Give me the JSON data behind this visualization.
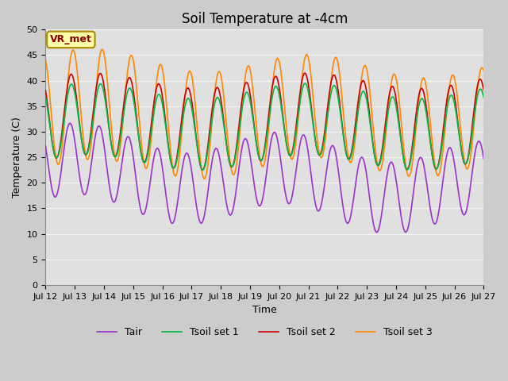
{
  "title": "Soil Temperature at -4cm",
  "xlabel": "Time",
  "ylabel": "Temperature (C)",
  "ylim": [
    0,
    50
  ],
  "annotation": "VR_met",
  "fig_bg_color": "#cccccc",
  "plot_bg_color": "#e0e0e0",
  "grid_color": "#f5f5f5",
  "tick_labels": [
    "Jul 12",
    "Jul 13",
    "Jul 14",
    "Jul 15",
    "Jul 16",
    "Jul 17",
    "Jul 18",
    "Jul 19",
    "Jul 20",
    "Jul 21",
    "Jul 22",
    "Jul 23",
    "Jul 24",
    "Jul 25",
    "Jul 26",
    "Jul 27"
  ],
  "line_colors": {
    "Tair": "#9933cc",
    "Tsoil1": "#cc0000",
    "Tsoil2": "#ff8800",
    "Tsoil3": "#00bb44"
  },
  "legend_labels": [
    "Tair",
    "Tsoil set 1",
    "Tsoil set 2",
    "Tsoil set 3"
  ],
  "title_fontsize": 12,
  "label_fontsize": 9,
  "tick_fontsize": 8,
  "legend_fontsize": 9
}
